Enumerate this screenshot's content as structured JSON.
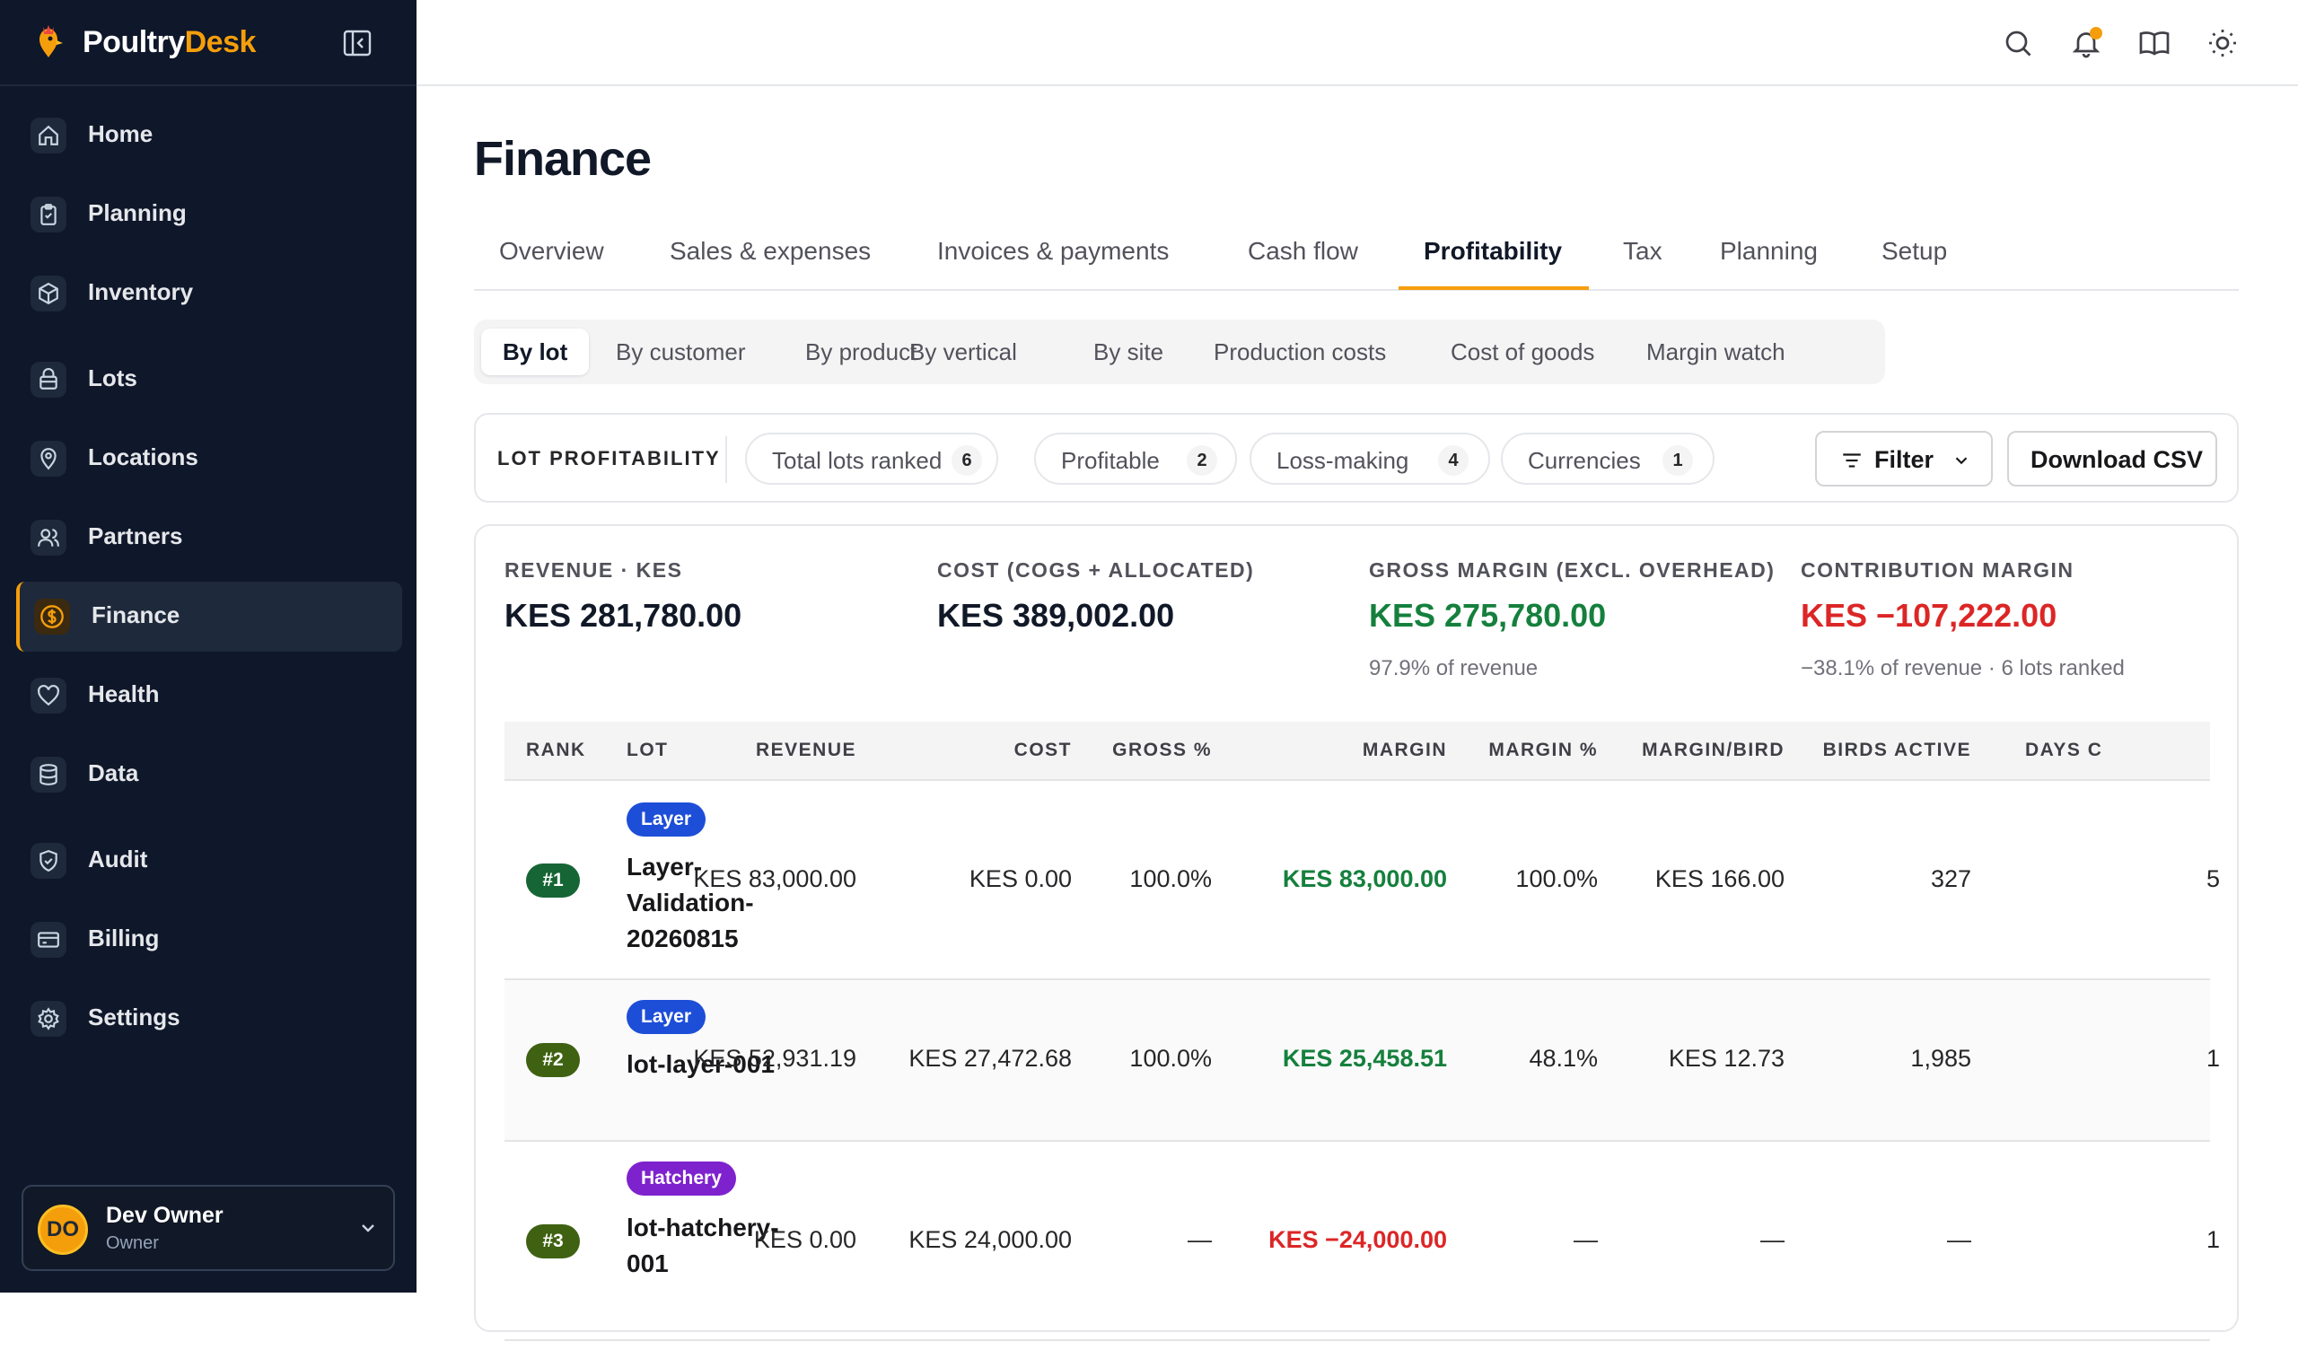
{
  "brand": {
    "name_main": "Poultry",
    "name_accent": "Desk",
    "accent_color": "#f59e0b"
  },
  "sidebar": {
    "items": [
      {
        "label": "Home",
        "icon": "home-icon"
      },
      {
        "label": "Planning",
        "icon": "clipboard-icon"
      },
      {
        "label": "Inventory",
        "icon": "box-icon"
      },
      {
        "label": "Lots",
        "icon": "layers-icon"
      },
      {
        "label": "Locations",
        "icon": "map-pin-icon"
      },
      {
        "label": "Partners",
        "icon": "users-icon"
      },
      {
        "label": "Finance",
        "icon": "dollar-icon",
        "active": true
      },
      {
        "label": "Health",
        "icon": "heart-icon"
      },
      {
        "label": "Data",
        "icon": "database-icon"
      },
      {
        "label": "Audit",
        "icon": "shield-icon"
      },
      {
        "label": "Billing",
        "icon": "credit-card-icon"
      },
      {
        "label": "Settings",
        "icon": "gear-icon"
      }
    ],
    "user": {
      "initials": "DO",
      "name": "Dev Owner",
      "role": "Owner"
    }
  },
  "page": {
    "title": "Finance"
  },
  "tabs": [
    {
      "label": "Overview"
    },
    {
      "label": "Sales & expenses"
    },
    {
      "label": "Invoices & payments"
    },
    {
      "label": "Cash flow"
    },
    {
      "label": "Profitability",
      "active": true
    },
    {
      "label": "Tax"
    },
    {
      "label": "Planning"
    },
    {
      "label": "Setup"
    }
  ],
  "subtabs": [
    {
      "label": "By lot",
      "active": true
    },
    {
      "label": "By customer"
    },
    {
      "label": "By product"
    },
    {
      "label": "By vertical"
    },
    {
      "label": "By site"
    },
    {
      "label": "Production costs"
    },
    {
      "label": "Cost of goods"
    },
    {
      "label": "Margin watch"
    }
  ],
  "filterbar": {
    "label": "LOT PROFITABILITY",
    "pills": [
      {
        "label": "Total lots ranked",
        "count": "6"
      },
      {
        "label": "Profitable",
        "count": "2"
      },
      {
        "label": "Loss-making",
        "count": "4"
      },
      {
        "label": "Currencies",
        "count": "1"
      }
    ],
    "filter_label": "Filter",
    "download_label": "Download CSV"
  },
  "kpis": [
    {
      "label": "REVENUE · KES",
      "value": "KES 281,780.00",
      "sub": ""
    },
    {
      "label": "COST (COGS + ALLOCATED)",
      "value": "KES 389,002.00",
      "sub": ""
    },
    {
      "label": "GROSS MARGIN (EXCL. OVERHEAD)",
      "value": "KES 275,780.00",
      "sub": "97.9% of revenue",
      "tone": "positive"
    },
    {
      "label": "CONTRIBUTION MARGIN",
      "value": "KES −107,222.00",
      "sub": "−38.1% of revenue · 6 lots ranked",
      "tone": "negative"
    }
  ],
  "table": {
    "columns": [
      "RANK",
      "LOT",
      "REVENUE",
      "COST",
      "GROSS %",
      "MARGIN",
      "MARGIN %",
      "MARGIN/BIRD",
      "BIRDS ACTIVE",
      "DAYS C"
    ],
    "rows": [
      {
        "rank": "#1",
        "rank_color": "#166534",
        "type": "Layer",
        "type_color": "#1d4ed8",
        "lot": "Layer-Validation-20260815",
        "revenue": "KES 83,000.00",
        "cost": "KES 0.00",
        "gross_pct": "100.0%",
        "margin": "KES 83,000.00",
        "margin_tone": "positive",
        "margin_pct": "100.0%",
        "margin_bird": "KES 166.00",
        "birds_active": "327",
        "days": "5"
      },
      {
        "rank": "#2",
        "rank_color": "#3f6212",
        "type": "Layer",
        "type_color": "#1d4ed8",
        "lot": "lot-layer-001",
        "revenue": "KES 52,931.19",
        "cost": "KES 27,472.68",
        "gross_pct": "100.0%",
        "margin": "KES 25,458.51",
        "margin_tone": "positive",
        "margin_pct": "48.1%",
        "margin_bird": "KES 12.73",
        "birds_active": "1,985",
        "days": "1"
      },
      {
        "rank": "#3",
        "rank_color": "#3f6212",
        "type": "Hatchery",
        "type_color": "#7e22ce",
        "lot": "lot-hatchery-001",
        "revenue": "KES 0.00",
        "cost": "KES 24,000.00",
        "gross_pct": "—",
        "margin": "KES −24,000.00",
        "margin_tone": "negative",
        "margin_pct": "—",
        "margin_bird": "—",
        "birds_active": "—",
        "days": "1"
      }
    ]
  }
}
